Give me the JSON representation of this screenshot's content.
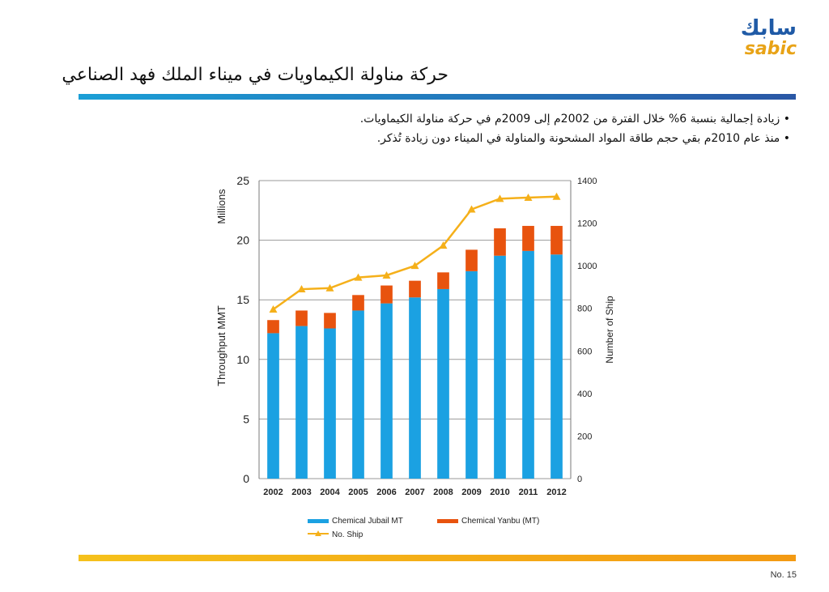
{
  "logo": {
    "arabic": "سابك",
    "latin": "sabic"
  },
  "title": "حركة مناولة الكيماويات في ميناء الملك فهد الصناعي",
  "bullets": [
    "• زيادة إجمالية بنسبة 6% خلال الفترة من 2002م إلى 2009م في حركة مناولة الكيماويات.",
    "• منذ عام 2010م بقي حجم طاقة المواد المشحونة والمناولة في الميناء دون زيادة تُذكر."
  ],
  "page_number": "No. 15",
  "colors": {
    "jubail": "#1ba1e2",
    "yanbu": "#e8530e",
    "ships": "#f5b01a",
    "grid": "#9a9a9a"
  },
  "chart_data": {
    "type": "bar",
    "stacked": true,
    "categories": [
      "2002",
      "2003",
      "2004",
      "2005",
      "2006",
      "2007",
      "2008",
      "2009",
      "2010",
      "2011",
      "2012"
    ],
    "series": [
      {
        "name": "Chemical Jubail MT",
        "axis": "left",
        "values": [
          12.2,
          12.8,
          12.6,
          14.1,
          14.7,
          15.2,
          15.9,
          17.4,
          18.7,
          19.1,
          18.8
        ]
      },
      {
        "name": "Chemical Yanbu (MT)",
        "axis": "left",
        "values": [
          1.1,
          1.3,
          1.3,
          1.3,
          1.5,
          1.4,
          1.4,
          1.8,
          2.3,
          2.1,
          2.4
        ]
      },
      {
        "name": "No. Ship",
        "axis": "right",
        "type": "line",
        "marker": "triangle",
        "values": [
          795,
          890,
          895,
          945,
          955,
          1000,
          1095,
          1265,
          1315,
          1320,
          1325
        ]
      }
    ],
    "ylabel": "Throughput  MMT",
    "yunit": "Millions",
    "ylim": [
      0,
      25
    ],
    "yticks": [
      0,
      5,
      10,
      15,
      20,
      25
    ],
    "y2label": "Number of Ship",
    "y2lim": [
      0,
      1400
    ],
    "y2ticks": [
      0,
      200,
      400,
      600,
      800,
      1000,
      1200,
      1400
    ],
    "grid": true,
    "legend": "bottom"
  }
}
